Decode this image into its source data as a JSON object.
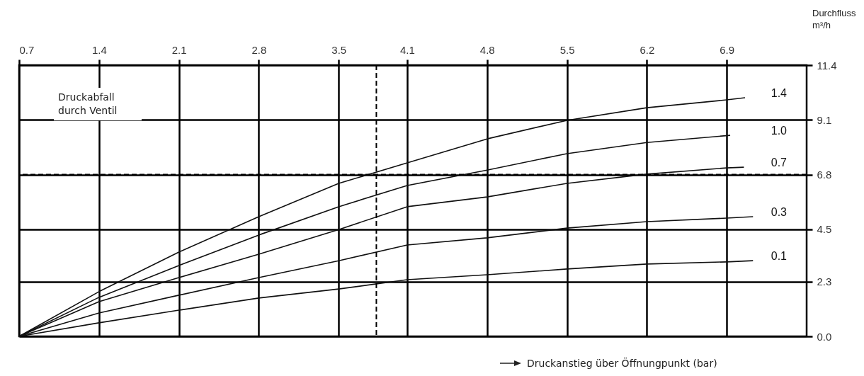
{
  "chart_data": {
    "type": "line",
    "ylabel": "Durchfluss m³/h",
    "xlabel": "Druckanstieg über Öffnungpunkt (bar)",
    "annotations": [
      "Druckabfall durch Ventil"
    ],
    "xlim": [
      0.7,
      7.6
    ],
    "ylim": [
      0,
      11.4
    ],
    "xticks": [
      0.7,
      1.4,
      2.1,
      2.8,
      3.5,
      4.1,
      4.8,
      5.5,
      6.2,
      6.9
    ],
    "yticks": [
      {
        "value": 0,
        "label": "0.0"
      },
      2.3,
      4.5,
      6.8,
      9.1,
      11.4
    ],
    "grid": true,
    "legend": false,
    "line_style": "solid",
    "ref_lines": [
      {
        "axis": "x",
        "value": 3.83,
        "line_style": "dashed"
      },
      {
        "axis": "y",
        "value": 6.8,
        "line_style": "dashed"
      }
    ],
    "series": [
      {
        "name": "1.4",
        "color": "#111111",
        "x": [
          0.7,
          1.4,
          2.1,
          2.8,
          3.5,
          4.1,
          4.8,
          5.5,
          6.2,
          6.9,
          7.06
        ],
        "values": [
          0,
          1.88,
          3.54,
          5.03,
          6.43,
          7.29,
          8.3,
          9.08,
          9.61,
          9.94,
          10.03
        ]
      },
      {
        "name": "1.0",
        "color": "#111111",
        "x": [
          0.7,
          1.4,
          2.1,
          2.8,
          3.5,
          4.1,
          4.8,
          5.5,
          6.2,
          6.93
        ],
        "values": [
          0,
          1.64,
          2.98,
          4.26,
          5.45,
          6.34,
          6.99,
          7.68,
          8.15,
          8.45
        ]
      },
      {
        "name": "0.7",
        "color": "#111111",
        "x": [
          0.7,
          1.4,
          2.1,
          2.8,
          3.5,
          4.1,
          4.8,
          5.5,
          6.2,
          6.9,
          7.05
        ],
        "values": [
          0,
          1.46,
          2.47,
          3.45,
          4.49,
          5.45,
          5.86,
          6.43,
          6.82,
          7.08,
          7.11
        ]
      },
      {
        "name": "0.3",
        "color": "#111111",
        "x": [
          0.7,
          1.4,
          2.1,
          2.8,
          3.5,
          4.1,
          4.8,
          5.5,
          6.2,
          6.9,
          7.13
        ],
        "values": [
          0,
          0.98,
          1.73,
          2.47,
          3.18,
          3.84,
          4.14,
          4.55,
          4.82,
          4.97,
          5.03
        ]
      },
      {
        "name": "0.1",
        "color": "#111111",
        "x": [
          0.7,
          1.4,
          2.1,
          2.8,
          3.5,
          4.1,
          4.8,
          5.5,
          6.2,
          6.9,
          7.13
        ],
        "values": [
          0,
          0.57,
          1.1,
          1.61,
          1.99,
          2.38,
          2.59,
          2.83,
          3.04,
          3.13,
          3.18
        ]
      }
    ]
  }
}
